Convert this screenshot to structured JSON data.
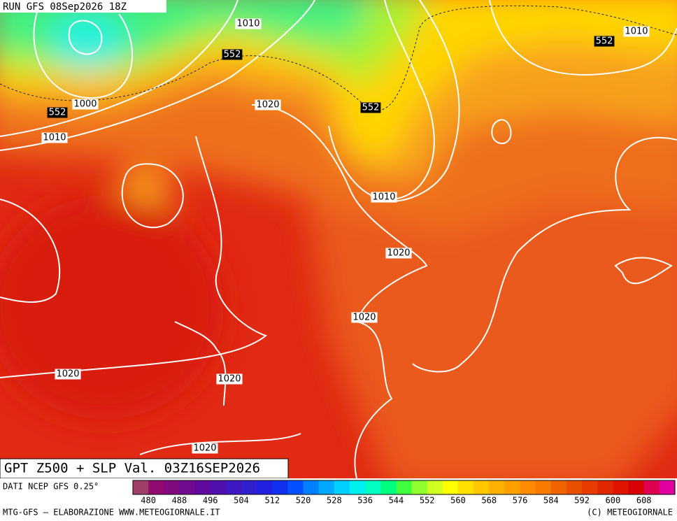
{
  "header": {
    "run": "RUN GFS 08Sep2026 18Z"
  },
  "map": {
    "contour_labels": [
      1010,
      552,
      1000,
      552,
      1010,
      1020,
      552,
      1010,
      1020,
      1020,
      1020,
      1020,
      1020,
      1010,
      552
    ]
  },
  "caption": "GPT Z500 + SLP Val. 03Z16SEP2026",
  "source": "DATI NCEP GFS 0.25°",
  "colorbar": {
    "range": [
      476,
      616
    ],
    "ticks": [
      480,
      488,
      496,
      504,
      512,
      520,
      528,
      536,
      544,
      552,
      560,
      568,
      576,
      584,
      592,
      600,
      608
    ],
    "colors": [
      "#a0406a",
      "#900a70",
      "#800a80",
      "#700a90",
      "#600aa0",
      "#5010b0",
      "#4018c0",
      "#3020d0",
      "#2020e0",
      "#1030f0",
      "#0050ff",
      "#0080ff",
      "#00a8ff",
      "#00d0ff",
      "#00f0f0",
      "#00ffc0",
      "#00ff80",
      "#40ff40",
      "#90ff30",
      "#d0ff20",
      "#ffff00",
      "#ffe000",
      "#ffc800",
      "#ffb000",
      "#ffa000",
      "#ff8c00",
      "#f87800",
      "#f06400",
      "#e85000",
      "#e83c00",
      "#e02800",
      "#e01400",
      "#d80000",
      "#e00050",
      "#e000a0"
    ]
  },
  "footer": {
    "left": "MTG-GFS — ELABORAZIONE WWW.METEOGIORNALE.IT",
    "right": "(C) METEOGIORNALE"
  }
}
